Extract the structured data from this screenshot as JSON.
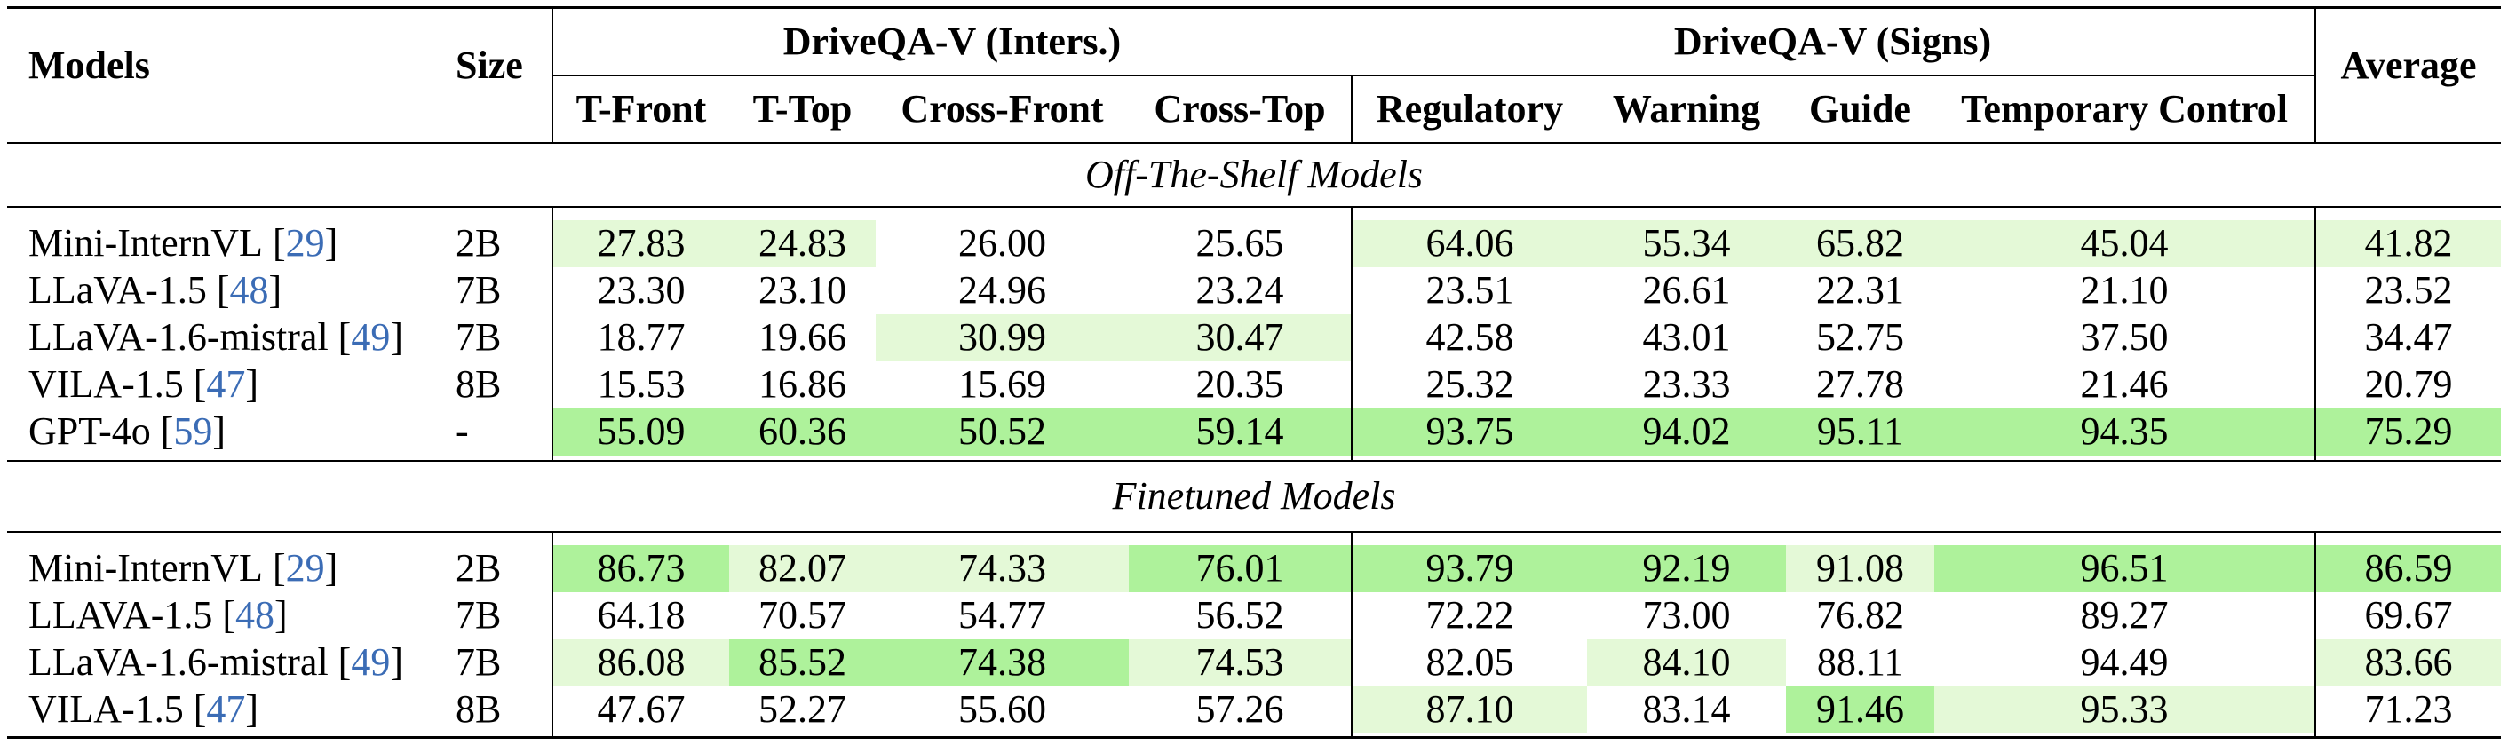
{
  "header": {
    "models": "Models",
    "size": "Size",
    "average": "Average",
    "groups": [
      {
        "label": "DriveQA-V (Inters.)",
        "columns": [
          "T-Front",
          "T-Top",
          "Cross-Front",
          "Cross-Top"
        ]
      },
      {
        "label": "DriveQA-V (Signs)",
        "columns": [
          "Regulatory",
          "Warning",
          "Guide",
          "Temporary Control"
        ]
      }
    ]
  },
  "citation_format": {
    "open": "[",
    "close": "]"
  },
  "sections": [
    {
      "title": "Off-The-Shelf Models",
      "rows": [
        {
          "model": "Mini-InternVL",
          "cite": "29",
          "size": "2B",
          "values": [
            "27.83",
            "24.83",
            "26.00",
            "25.65",
            "64.06",
            "55.34",
            "65.82",
            "45.04"
          ],
          "average": "41.82",
          "highlight": [
            1,
            1,
            0,
            0,
            1,
            1,
            1,
            1,
            1
          ]
        },
        {
          "model": "LLaVA-1.5",
          "cite": "48",
          "size": "7B",
          "values": [
            "23.30",
            "23.10",
            "24.96",
            "23.24",
            "23.51",
            "26.61",
            "22.31",
            "21.10"
          ],
          "average": "23.52",
          "highlight": [
            0,
            0,
            0,
            0,
            0,
            0,
            0,
            0,
            0
          ]
        },
        {
          "model": "LLaVA-1.6-mistral",
          "cite": "49",
          "size": "7B",
          "values": [
            "18.77",
            "19.66",
            "30.99",
            "30.47",
            "42.58",
            "43.01",
            "52.75",
            "37.50"
          ],
          "average": "34.47",
          "highlight": [
            0,
            0,
            1,
            1,
            0,
            0,
            0,
            0,
            0
          ]
        },
        {
          "model": "VILA-1.5",
          "cite": "47",
          "size": "8B",
          "values": [
            "15.53",
            "16.86",
            "15.69",
            "20.35",
            "25.32",
            "23.33",
            "27.78",
            "21.46"
          ],
          "average": "20.79",
          "highlight": [
            0,
            0,
            0,
            0,
            0,
            0,
            0,
            0,
            0
          ]
        },
        {
          "model": "GPT-4o",
          "cite": "59",
          "size": "-",
          "values": [
            "55.09",
            "60.36",
            "50.52",
            "59.14",
            "93.75",
            "94.02",
            "95.11",
            "94.35"
          ],
          "average": "75.29",
          "highlight": [
            2,
            2,
            2,
            2,
            2,
            2,
            2,
            2,
            2
          ]
        }
      ]
    },
    {
      "title": "Finetuned Models",
      "rows": [
        {
          "model": "Mini-InternVL",
          "cite": "29",
          "size": "2B",
          "values": [
            "86.73",
            "82.07",
            "74.33",
            "76.01",
            "93.79",
            "92.19",
            "91.08",
            "96.51"
          ],
          "average": "86.59",
          "highlight": [
            2,
            1,
            1,
            2,
            2,
            2,
            1,
            2,
            2
          ]
        },
        {
          "model": "LLAVA-1.5",
          "cite": "48",
          "size": "7B",
          "values": [
            "64.18",
            "70.57",
            "54.77",
            "56.52",
            "72.22",
            "73.00",
            "76.82",
            "89.27"
          ],
          "average": "69.67",
          "highlight": [
            0,
            0,
            0,
            0,
            0,
            0,
            0,
            0,
            0
          ]
        },
        {
          "model": "LLaVA-1.6-mistral",
          "cite": "49",
          "size": "7B",
          "values": [
            "86.08",
            "85.52",
            "74.38",
            "74.53",
            "82.05",
            "84.10",
            "88.11",
            "94.49"
          ],
          "average": "83.66",
          "highlight": [
            1,
            2,
            2,
            1,
            0,
            1,
            0,
            0,
            1
          ]
        },
        {
          "model": "VILA-1.5",
          "cite": "47",
          "size": "8B",
          "values": [
            "47.67",
            "52.27",
            "55.60",
            "57.26",
            "87.10",
            "83.14",
            "91.46",
            "95.33"
          ],
          "average": "71.23",
          "highlight": [
            0,
            0,
            0,
            0,
            1,
            0,
            2,
            1,
            0
          ]
        }
      ]
    }
  ],
  "colors": {
    "highlight": [
      "#ffffff",
      "#e4f9d7",
      "#aef29b"
    ],
    "citation": "#3b6cb5"
  }
}
